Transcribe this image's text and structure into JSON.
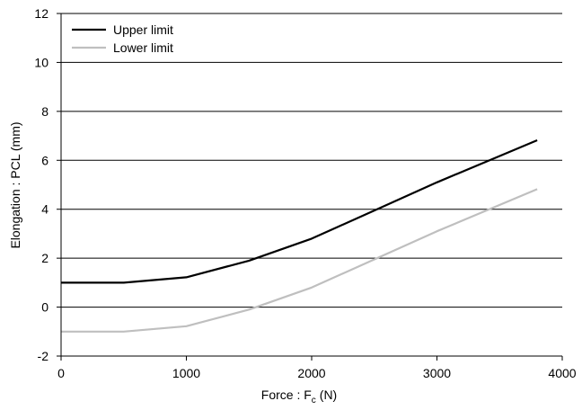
{
  "chart_data": {
    "type": "line",
    "xlabel": "Force : F",
    "xlabel_sub": "c",
    "xlabel_unit": "(N)",
    "ylabel": "Elongation : PCL (mm)",
    "xlim": [
      0,
      4000
    ],
    "ylim": [
      -2,
      12
    ],
    "xticks": [
      0,
      1000,
      2000,
      3000,
      4000
    ],
    "yticks": [
      -2,
      0,
      2,
      4,
      6,
      8,
      10,
      12
    ],
    "grid": "horizontal",
    "legend_position": "top-left",
    "series": [
      {
        "name": "Upper limit",
        "color": "#000000",
        "points": [
          [
            0,
            1.0
          ],
          [
            500,
            1.0
          ],
          [
            1000,
            1.22
          ],
          [
            1500,
            1.9
          ],
          [
            2000,
            2.8
          ],
          [
            2500,
            3.95
          ],
          [
            3000,
            5.1
          ],
          [
            3800,
            6.82
          ]
        ]
      },
      {
        "name": "Lower limit",
        "color": "#bfbfbf",
        "points": [
          [
            0,
            -1.0
          ],
          [
            500,
            -1.0
          ],
          [
            1000,
            -0.78
          ],
          [
            1500,
            -0.1
          ],
          [
            2000,
            0.8
          ],
          [
            2500,
            1.95
          ],
          [
            3000,
            3.1
          ],
          [
            3800,
            4.82
          ]
        ]
      }
    ]
  }
}
